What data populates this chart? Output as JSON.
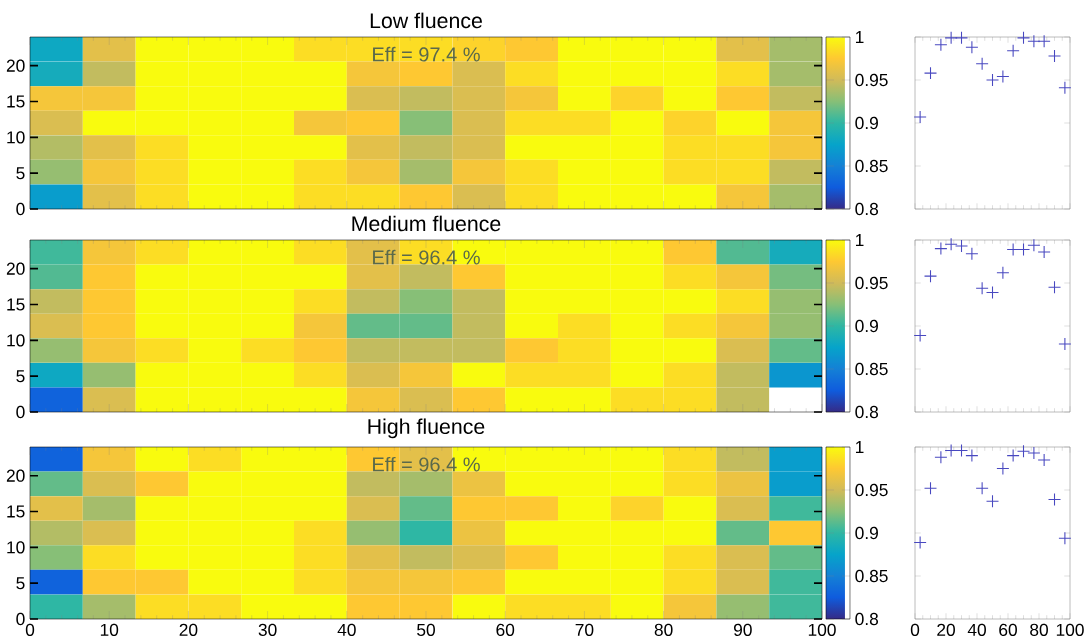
{
  "chart_data": [
    {
      "type": "heatmap",
      "title": "Low fluence",
      "annotations": [
        "Eff = 97.4 %"
      ],
      "xlim": [
        0,
        100
      ],
      "ylim": [
        0,
        24
      ],
      "xticks": [
        0,
        10,
        20,
        30,
        40,
        50,
        60,
        70,
        80,
        90,
        100
      ],
      "yticks": [
        0,
        5,
        10,
        15,
        20
      ],
      "tick_labels": "y",
      "clim": [
        0.8,
        1
      ],
      "cticks": [
        0.8,
        0.85,
        0.9,
        0.95,
        1
      ],
      "cells": [
        [
          0.88,
          0.96,
          1.0,
          1.0,
          1.0,
          0.985,
          0.985,
          0.985,
          0.98,
          0.975,
          1.0,
          1.0,
          1.0,
          0.96,
          0.935
        ],
        [
          0.885,
          0.945,
          1.0,
          1.0,
          1.0,
          1.0,
          0.97,
          0.975,
          0.955,
          0.985,
          1.0,
          1.0,
          1.0,
          0.985,
          0.935
        ],
        [
          0.97,
          0.97,
          1.0,
          1.0,
          1.0,
          1.0,
          0.955,
          0.945,
          0.955,
          0.97,
          1.0,
          0.98,
          1.0,
          0.975,
          0.945
        ],
        [
          0.955,
          1.0,
          1.0,
          1.0,
          1.0,
          0.97,
          0.975,
          0.925,
          0.955,
          0.985,
          0.985,
          1.0,
          0.98,
          1.0,
          0.97
        ],
        [
          0.94,
          0.96,
          0.985,
          1.0,
          1.0,
          1.0,
          0.96,
          0.945,
          0.955,
          1.0,
          1.0,
          1.0,
          0.985,
          0.985,
          0.97
        ],
        [
          0.93,
          0.97,
          0.985,
          1.0,
          1.0,
          0.985,
          0.97,
          0.935,
          0.97,
          0.985,
          1.0,
          1.0,
          0.985,
          0.985,
          0.945
        ],
        [
          0.87,
          0.96,
          0.985,
          1.0,
          1.0,
          0.985,
          0.985,
          0.975,
          0.955,
          0.985,
          1.0,
          1.0,
          1.0,
          0.97,
          0.935
        ]
      ]
    },
    {
      "type": "heatmap",
      "title": "Medium fluence",
      "annotations": [
        "Eff = 96.4 %"
      ],
      "xlim": [
        0,
        100
      ],
      "ylim": [
        0,
        24
      ],
      "xticks": [
        0,
        10,
        20,
        30,
        40,
        50,
        60,
        70,
        80,
        90,
        100
      ],
      "yticks": [
        0,
        5,
        10,
        15,
        20
      ],
      "tick_labels": "y",
      "clim": [
        0.8,
        1
      ],
      "cticks": [
        0.8,
        0.85,
        0.9,
        0.95,
        1
      ],
      "cells": [
        [
          0.905,
          0.97,
          0.985,
          1.0,
          1.0,
          0.985,
          0.96,
          0.985,
          1.0,
          1.0,
          1.0,
          1.0,
          0.975,
          0.91,
          0.885
        ],
        [
          0.91,
          0.975,
          1.0,
          1.0,
          1.0,
          1.0,
          0.96,
          0.945,
          0.975,
          1.0,
          1.0,
          1.0,
          0.985,
          0.97,
          0.92
        ],
        [
          0.945,
          0.975,
          1.0,
          1.0,
          1.0,
          0.985,
          0.945,
          0.925,
          0.945,
          1.0,
          1.0,
          1.0,
          1.0,
          0.985,
          0.93
        ],
        [
          0.955,
          0.975,
          1.0,
          1.0,
          1.0,
          0.97,
          0.915,
          0.915,
          0.945,
          1.0,
          0.985,
          1.0,
          0.985,
          0.97,
          0.93
        ],
        [
          0.93,
          0.97,
          0.985,
          1.0,
          0.985,
          0.975,
          0.945,
          0.945,
          0.945,
          0.975,
          0.985,
          1.0,
          1.0,
          0.955,
          0.915
        ],
        [
          0.88,
          0.93,
          1.0,
          1.0,
          1.0,
          0.985,
          0.955,
          0.97,
          1.0,
          0.985,
          0.985,
          1.0,
          0.985,
          0.945,
          0.865
        ],
        [
          0.83,
          0.955,
          1.0,
          1.0,
          1.0,
          1.0,
          0.97,
          0.955,
          0.975,
          1.0,
          1.0,
          0.985,
          0.985,
          0.945,
          null
        ]
      ]
    },
    {
      "type": "heatmap",
      "title": "High fluence",
      "annotations": [
        "Eff = 96.4 %"
      ],
      "xlim": [
        0,
        100
      ],
      "ylim": [
        0,
        24
      ],
      "xticks": [
        0,
        10,
        20,
        30,
        40,
        50,
        60,
        70,
        80,
        90,
        100
      ],
      "yticks": [
        0,
        5,
        10,
        15,
        20
      ],
      "clim": [
        0.8,
        1
      ],
      "cticks": [
        0.8,
        0.85,
        0.9,
        0.95,
        1
      ],
      "cells": [
        [
          0.83,
          0.97,
          1.0,
          0.985,
          1.0,
          1.0,
          0.975,
          0.96,
          1.0,
          1.0,
          1.0,
          1.0,
          0.985,
          0.945,
          0.87
        ],
        [
          0.915,
          0.955,
          0.975,
          1.0,
          1.0,
          1.0,
          0.945,
          0.935,
          0.965,
          1.0,
          1.0,
          1.0,
          0.985,
          0.965,
          0.87
        ],
        [
          0.96,
          0.935,
          1.0,
          1.0,
          1.0,
          1.0,
          0.955,
          0.915,
          0.975,
          0.975,
          1.0,
          0.98,
          1.0,
          0.955,
          0.905
        ],
        [
          0.94,
          0.955,
          1.0,
          1.0,
          1.0,
          0.985,
          0.93,
          0.9,
          0.965,
          1.0,
          1.0,
          1.0,
          1.0,
          0.915,
          0.975
        ],
        [
          0.925,
          0.985,
          1.0,
          1.0,
          1.0,
          0.985,
          0.96,
          0.945,
          0.955,
          0.975,
          1.0,
          1.0,
          0.985,
          0.955,
          0.915
        ],
        [
          0.83,
          0.975,
          0.975,
          1.0,
          1.0,
          0.985,
          0.97,
          0.97,
          0.975,
          1.0,
          1.0,
          1.0,
          0.985,
          0.955,
          0.905
        ],
        [
          0.9,
          0.935,
          0.985,
          0.985,
          1.0,
          1.0,
          0.975,
          0.975,
          1.0,
          0.985,
          0.985,
          1.0,
          0.97,
          0.93,
          0.905
        ]
      ]
    },
    {
      "type": "scatter",
      "x": [
        3.3,
        10,
        16.7,
        23.3,
        30,
        36.7,
        43.3,
        50,
        56.7,
        63.3,
        70,
        76.7,
        83.3,
        90,
        96.7
      ],
      "xlim": [
        0,
        100
      ],
      "ylim": [
        0.8,
        1
      ],
      "xticks": [
        0,
        20,
        40,
        60,
        80,
        100
      ],
      "yticks": [
        0.8,
        0.85,
        0.9,
        0.95,
        1
      ],
      "tick_labels": false,
      "marker": "cross",
      "series": [
        {
          "color": "#4848c0",
          "values": [
            0.907,
            0.958,
            0.991,
            0.999,
            0.999,
            0.988,
            0.969,
            0.95,
            0.954,
            0.984,
            0.999,
            0.995,
            0.995,
            0.978,
            0.941
          ]
        }
      ]
    },
    {
      "type": "scatter",
      "x": [
        3.3,
        10,
        16.7,
        23.3,
        30,
        36.7,
        43.3,
        50,
        56.7,
        63.3,
        70,
        76.7,
        83.3,
        90,
        96.7
      ],
      "xlim": [
        0,
        100
      ],
      "ylim": [
        0.8,
        1
      ],
      "xticks": [
        0,
        20,
        40,
        60,
        80,
        100
      ],
      "yticks": [
        0.8,
        0.85,
        0.9,
        0.95,
        1
      ],
      "tick_labels": false,
      "marker": "cross",
      "series": [
        {
          "color": "#4848c0",
          "values": [
            0.889,
            0.958,
            0.99,
            0.995,
            0.993,
            0.984,
            0.944,
            0.939,
            0.962,
            0.989,
            0.989,
            0.994,
            0.986,
            0.945,
            0.879
          ]
        }
      ]
    },
    {
      "type": "scatter",
      "x": [
        3.3,
        10,
        16.7,
        23.3,
        30,
        36.7,
        43.3,
        50,
        56.7,
        63.3,
        70,
        76.7,
        83.3,
        90,
        96.7
      ],
      "xlim": [
        0,
        100
      ],
      "ylim": [
        0.8,
        1
      ],
      "xticks": [
        0,
        20,
        40,
        60,
        80,
        100
      ],
      "yticks": [
        0.8,
        0.85,
        0.9,
        0.95,
        1
      ],
      "tick_labels": "x",
      "marker": "cross",
      "series": [
        {
          "color": "#4848c0",
          "values": [
            0.889,
            0.952,
            0.988,
            0.996,
            0.996,
            0.99,
            0.952,
            0.937,
            0.975,
            0.99,
            0.995,
            0.993,
            0.985,
            0.939,
            0.894
          ]
        }
      ]
    }
  ]
}
